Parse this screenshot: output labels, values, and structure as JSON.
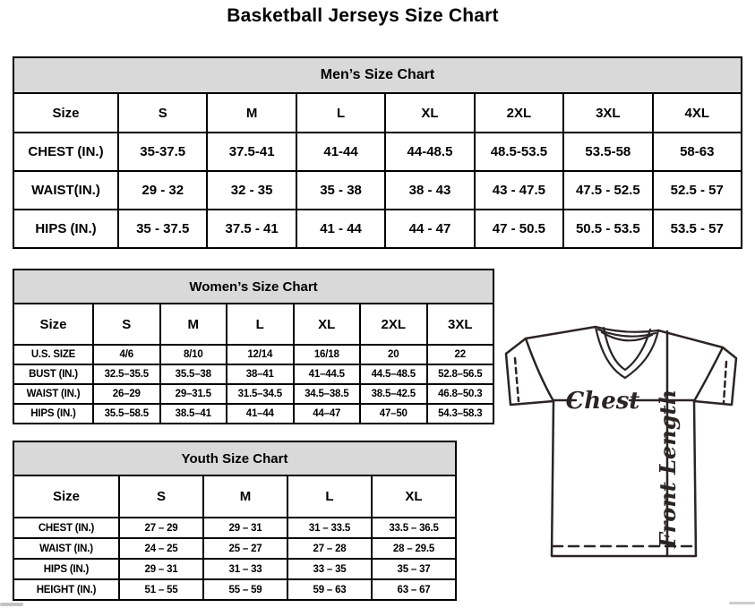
{
  "page": {
    "title": "Basketball Jerseys Size Chart"
  },
  "tables": {
    "men": {
      "title": "Men’s Size Chart",
      "header": [
        "Size",
        "S",
        "M",
        "L",
        "XL",
        "2XL",
        "3XL",
        "4XL"
      ],
      "rows": [
        [
          "CHEST (IN.)",
          "35-37.5",
          "37.5-41",
          "41-44",
          "44-48.5",
          "48.5-53.5",
          "53.5-58",
          "58-63"
        ],
        [
          "WAIST(IN.)",
          "29 - 32",
          "32 - 35",
          "35 - 38",
          "38 - 43",
          "43 - 47.5",
          "47.5 - 52.5",
          "52.5 - 57"
        ],
        [
          "HIPS (IN.)",
          "35 - 37.5",
          "37.5 - 41",
          "41 - 44",
          "44 - 47",
          "47 - 50.5",
          "50.5 - 53.5",
          "53.5 - 57"
        ]
      ]
    },
    "women": {
      "title": "Women’s Size Chart",
      "header": [
        "Size",
        "S",
        "M",
        "L",
        "XL",
        "2XL",
        "3XL"
      ],
      "rows": [
        [
          "U.S. SIZE",
          "4/6",
          "8/10",
          "12/14",
          "16/18",
          "20",
          "22"
        ],
        [
          "BUST (IN.)",
          "32.5–35.5",
          "35.5–38",
          "38–41",
          "41–44.5",
          "44.5–48.5",
          "52.8–56.5"
        ],
        [
          "WAIST (IN.)",
          "26–29",
          "29–31.5",
          "31.5–34.5",
          "34.5–38.5",
          "38.5–42.5",
          "46.8–50.3"
        ],
        [
          "HIPS (IN.)",
          "35.5–58.5",
          "38.5–41",
          "41–44",
          "44–47",
          "47–50",
          "54.3–58.3"
        ]
      ]
    },
    "youth": {
      "title": "Youth Size Chart",
      "header": [
        "Size",
        "S",
        "M",
        "L",
        "XL"
      ],
      "rows": [
        [
          "CHEST (IN.)",
          "27 – 29",
          "29 – 31",
          "31 – 33.5",
          "33.5 – 36.5"
        ],
        [
          "WAIST (IN.)",
          "24 – 25",
          "25 – 27",
          "27 – 28",
          "28 – 29.5"
        ],
        [
          "HIPS (IN.)",
          "29 – 31",
          "31 – 33",
          "33 – 35",
          "35 – 37"
        ],
        [
          "HEIGHT (IN.)",
          "51 – 55",
          "55 – 59",
          "59 – 63",
          "63 – 67"
        ]
      ]
    }
  },
  "diagram": {
    "chest_label": "Chest",
    "front_length_label": "Front Length"
  },
  "colors": {
    "table_header_bg": "#d9d9d9",
    "table_border": "#000000",
    "diagram_stroke": "#2b2424"
  }
}
